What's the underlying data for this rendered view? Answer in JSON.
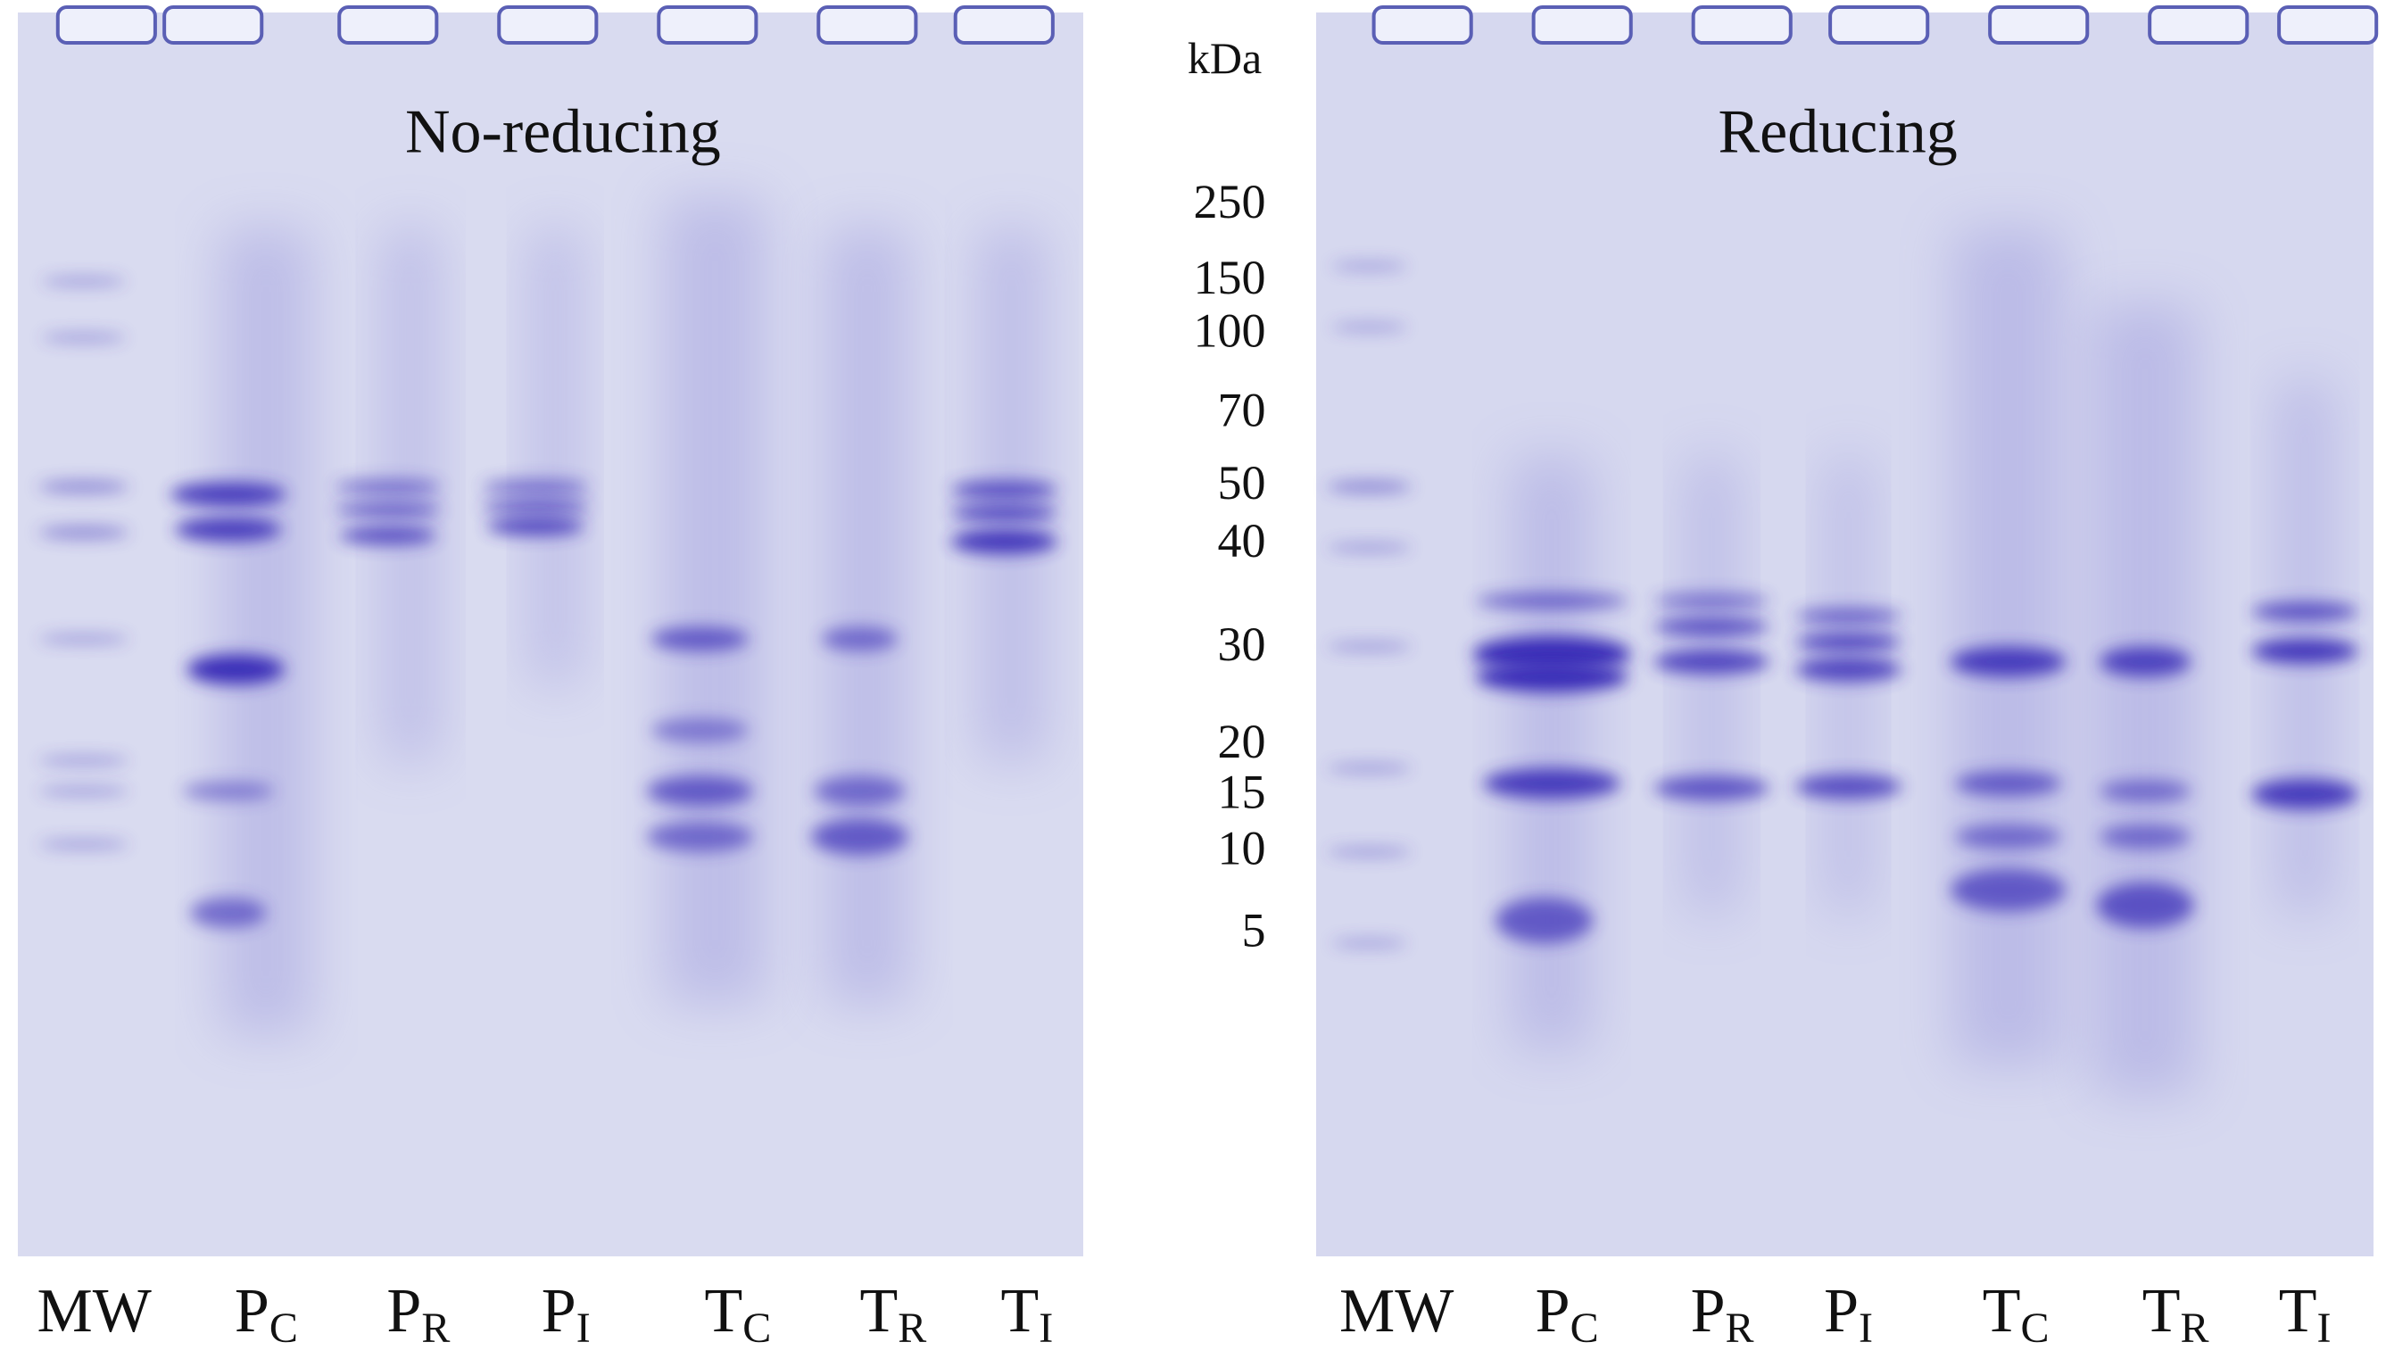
{
  "panels": [
    {
      "title": "No-reducing",
      "lanes": [
        {
          "main": "MW"
        },
        {
          "main": "P",
          "sub": "C"
        },
        {
          "main": "P",
          "sub": "R"
        },
        {
          "main": "P",
          "sub": "I"
        },
        {
          "main": "T",
          "sub": "C"
        },
        {
          "main": "T",
          "sub": "R"
        },
        {
          "main": "T",
          "sub": "I"
        }
      ]
    },
    {
      "title": "Reducing",
      "lanes": [
        {
          "main": "MW"
        },
        {
          "main": "P",
          "sub": "C"
        },
        {
          "main": "P",
          "sub": "R"
        },
        {
          "main": "P",
          "sub": "I"
        },
        {
          "main": "T",
          "sub": "C"
        },
        {
          "main": "T",
          "sub": "R"
        },
        {
          "main": "T",
          "sub": "I"
        }
      ]
    }
  ],
  "markers": {
    "unit": "kDa",
    "values": [
      250,
      150,
      100,
      70,
      50,
      40,
      30,
      20,
      15,
      10,
      5
    ]
  }
}
